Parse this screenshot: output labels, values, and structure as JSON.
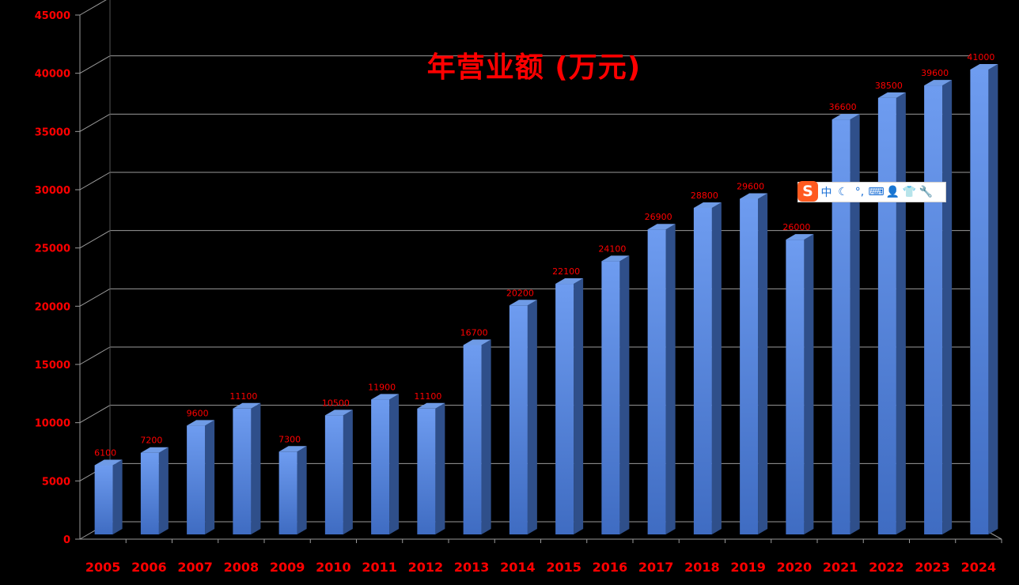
{
  "chart_data": {
    "type": "bar",
    "title": "年营业额 (万元)",
    "categories": [
      "2005",
      "2006",
      "2007",
      "2008",
      "2009",
      "2010",
      "2011",
      "2012",
      "2013",
      "2014",
      "2015",
      "2016",
      "2017",
      "2018",
      "2019",
      "2020",
      "2021",
      "2022",
      "2023",
      "2024"
    ],
    "series": [
      {
        "values": [
          6100,
          7200,
          9600,
          11100,
          7300,
          10500,
          11900,
          11100,
          16700,
          20200,
          22100,
          24100,
          26900,
          28800,
          29600,
          26000,
          36600,
          38500,
          39600,
          41000
        ]
      }
    ],
    "data_labels": [
      "6100",
      "7200",
      "9600",
      "11100",
      "7300",
      "10500",
      "11900",
      "11100",
      "16700",
      "20200",
      "22100",
      "24100",
      "26900",
      "28800",
      "29600",
      "26000",
      "36600",
      "38500",
      "39600",
      "41000"
    ],
    "yticks": [
      0,
      5000,
      10000,
      15000,
      20000,
      25000,
      30000,
      35000,
      40000,
      45000
    ],
    "ylim": [
      0,
      45000
    ],
    "grid": true,
    "colors": {
      "bar_front": "#4a7bd4",
      "bar_top": "#6f9be6",
      "bar_side": "#2f4f8a",
      "text": "#ff0000",
      "grid": "#9a9a9a"
    }
  },
  "ime_toolbar": {
    "logo": "S",
    "items": [
      {
        "icon": "chinese-mode-icon",
        "glyph": "中"
      },
      {
        "icon": "moon-icon",
        "glyph": "☾"
      },
      {
        "icon": "punctuation-icon",
        "glyph": "°,"
      },
      {
        "icon": "keyboard-icon",
        "glyph": "⌨"
      },
      {
        "icon": "user-icon",
        "glyph": "👤"
      },
      {
        "icon": "skin-shirt-icon",
        "glyph": "👕"
      },
      {
        "icon": "wrench-icon",
        "glyph": "🔧"
      }
    ]
  }
}
